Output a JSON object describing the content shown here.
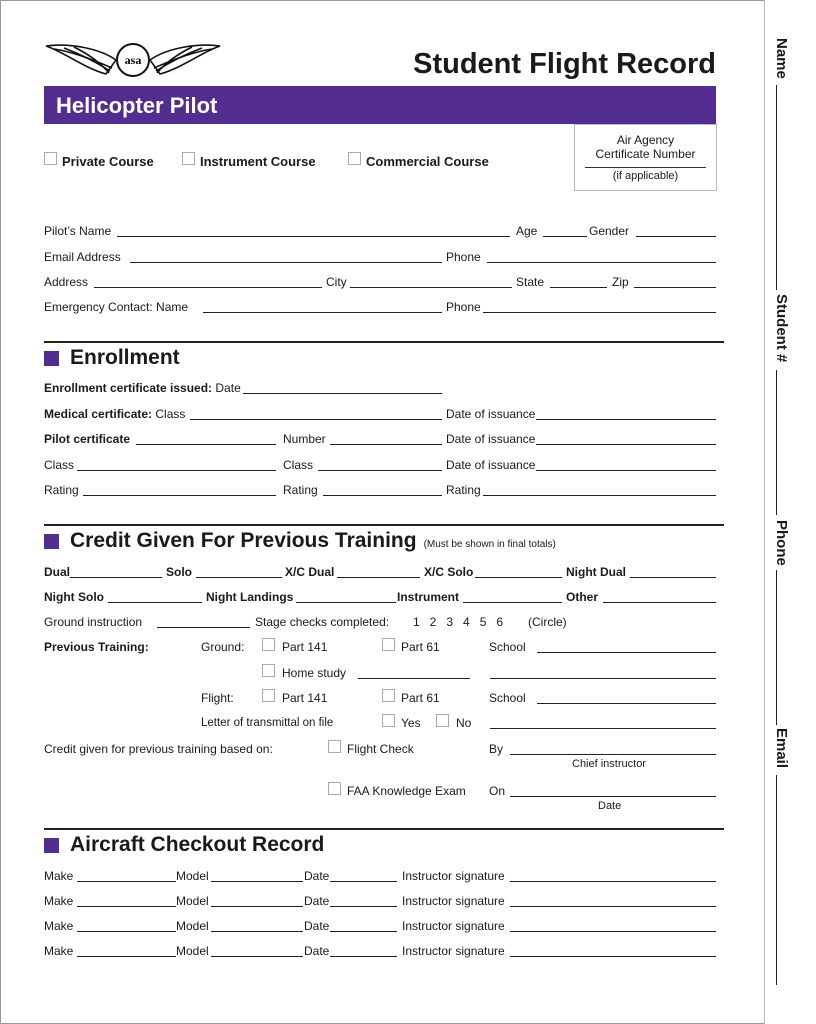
{
  "header": {
    "logo_text": "asa",
    "title": "Student Flight Record",
    "banner": "Helicopter Pilot",
    "brand_color": "#522d8f"
  },
  "courses": [
    "Private Course",
    "Instrument Course",
    "Commercial Course"
  ],
  "agency_box": {
    "line1": "Air Agency",
    "line2": "Certificate Number",
    "note": "(if applicable)"
  },
  "personal": {
    "pilots_name": "Pilot’s Name",
    "age": "Age",
    "gender": "Gender",
    "email": "Email Address",
    "phone": "Phone",
    "address": "Address",
    "city": "City",
    "state": "State",
    "zip": "Zip",
    "emergency": "Emergency Contact:  Name",
    "phone2": "Phone"
  },
  "enrollment": {
    "title": "Enrollment",
    "cert_issued": "Enrollment certificate issued:",
    "date": "Date",
    "medical": "Medical certificate:",
    "class": "Class",
    "date_issuance": "Date of issuance",
    "pilot_cert": "Pilot certificate",
    "number": "Number",
    "rating": "Rating"
  },
  "credit": {
    "title": "Credit Given For Previous Training",
    "note": "(Must be shown in final totals)",
    "dual": "Dual",
    "solo": "Solo",
    "xc_dual": "X/C Dual",
    "xc_solo": "X/C Solo",
    "night_dual": "Night Dual",
    "night_solo": "Night Solo",
    "night_landings": "Night Landings",
    "instrument": "Instrument",
    "other": "Other",
    "ground_instruction": "Ground instruction",
    "stage_checks": "Stage checks completed:",
    "stages": "1   2   3   4   5   6",
    "circle": "(Circle)",
    "previous_training": "Previous Training:",
    "ground": "Ground:",
    "part141": "Part 141",
    "part61": "Part 61",
    "school": "School",
    "home_study": "Home study",
    "flight": "Flight:",
    "letter": "Letter of transmittal on file",
    "yes": "Yes",
    "no": "No",
    "based_on": "Credit given for previous training based on:",
    "flight_check": "Flight Check",
    "by": "By",
    "chief_instructor": "Chief instructor",
    "faa_exam": "FAA Knowledge Exam",
    "on": "On",
    "date": "Date"
  },
  "aircraft": {
    "title": "Aircraft Checkout Record",
    "make": "Make",
    "model": "Model",
    "date": "Date",
    "signature": "Instructor signature"
  },
  "side_tab": [
    "Name",
    "Student #",
    "Phone",
    "Email"
  ]
}
